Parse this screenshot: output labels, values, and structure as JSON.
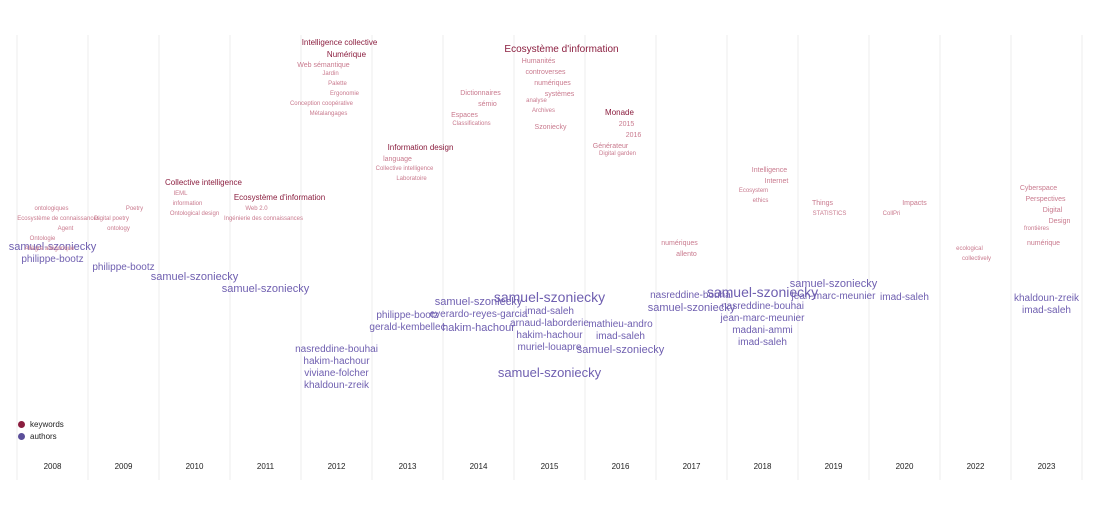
{
  "chart_data": {
    "type": "word-stream",
    "years": [
      "2008",
      "2009",
      "2010",
      "2011",
      "2012",
      "2013",
      "2014",
      "2015",
      "2016",
      "2017",
      "2018",
      "2019",
      "2020",
      "2022",
      "2023"
    ],
    "legend": [
      {
        "label": "keywords",
        "color": "#8b1e3f"
      },
      {
        "label": "authors",
        "color": "#5b4f9a"
      }
    ],
    "grid": true,
    "words": [
      {
        "t": "samuel-szoniecky",
        "k": "a",
        "year": "2008",
        "size": 11
      },
      {
        "t": "philippe-bootz",
        "k": "a",
        "year": "2008",
        "size": 10
      },
      {
        "t": "ontologiques",
        "k": "k",
        "year": "2008",
        "size": 6
      },
      {
        "t": "Ecosystème de connaissances",
        "k": "k",
        "year": "2008",
        "size": 6
      },
      {
        "t": "Agent",
        "k": "k",
        "year": "2008",
        "size": 6
      },
      {
        "t": "Ontologie",
        "k": "k",
        "year": "2008",
        "size": 6
      },
      {
        "t": "Allègre allégorique",
        "k": "k",
        "year": "2008",
        "size": 6
      },
      {
        "t": "philippe-bootz",
        "k": "a",
        "year": "2009",
        "size": 10
      },
      {
        "t": "Poetry",
        "k": "k",
        "year": "2009",
        "size": 6
      },
      {
        "t": "Digital poetry",
        "k": "k",
        "year": "2009",
        "size": 6
      },
      {
        "t": "ontology",
        "k": "k",
        "year": "2009",
        "size": 6
      },
      {
        "t": "samuel-szoniecky",
        "k": "a",
        "year": "2010",
        "size": 11
      },
      {
        "t": "Collective intelligence",
        "k": "k",
        "year": "2010",
        "size": 8
      },
      {
        "t": "IEML",
        "k": "k",
        "year": "2010",
        "size": 6
      },
      {
        "t": "information",
        "k": "k",
        "year": "2010",
        "size": 6
      },
      {
        "t": "Ontological design",
        "k": "k",
        "year": "2010",
        "size": 6
      },
      {
        "t": "samuel-szoniecky",
        "k": "a",
        "year": "2011",
        "size": 11
      },
      {
        "t": "Ecosystème d'information",
        "k": "k",
        "year": "2011",
        "size": 8
      },
      {
        "t": "Web 2.0",
        "k": "k",
        "year": "2011",
        "size": 6
      },
      {
        "t": "Ingénierie des connaissances",
        "k": "k",
        "year": "2011",
        "size": 6
      },
      {
        "t": "nasreddine-bouhai",
        "k": "a",
        "year": "2012",
        "size": 10
      },
      {
        "t": "hakim-hachour",
        "k": "a",
        "year": "2012",
        "size": 10
      },
      {
        "t": "viviane-folcher",
        "k": "a",
        "year": "2012",
        "size": 10
      },
      {
        "t": "khaldoun-zreik",
        "k": "a",
        "year": "2012",
        "size": 10
      },
      {
        "t": "Intelligence collective",
        "k": "k",
        "year": "2012",
        "size": 8
      },
      {
        "t": "Numérique",
        "k": "k",
        "year": "2012",
        "size": 8
      },
      {
        "t": "Web sémantique",
        "k": "k",
        "year": "2012",
        "size": 7
      },
      {
        "t": "Jardin",
        "k": "k",
        "year": "2012",
        "size": 6
      },
      {
        "t": "Palette",
        "k": "k",
        "year": "2012",
        "size": 6
      },
      {
        "t": "Ergonomie",
        "k": "k",
        "year": "2012",
        "size": 6
      },
      {
        "t": "Conception coopérative",
        "k": "k",
        "year": "2012",
        "size": 6
      },
      {
        "t": "Métalangages",
        "k": "k",
        "year": "2012",
        "size": 6
      },
      {
        "t": "philippe-bootz",
        "k": "a",
        "year": "2013",
        "size": 10
      },
      {
        "t": "gerald-kembellec",
        "k": "a",
        "year": "2013",
        "size": 10
      },
      {
        "t": "Information design",
        "k": "k",
        "year": "2013",
        "size": 8
      },
      {
        "t": "language",
        "k": "k",
        "year": "2013",
        "size": 7
      },
      {
        "t": "Collective intelligence",
        "k": "k",
        "year": "2013",
        "size": 6
      },
      {
        "t": "Laboratoire",
        "k": "k",
        "year": "2013",
        "size": 6
      },
      {
        "t": "samuel-szoniecky",
        "k": "a",
        "year": "2014",
        "size": 11
      },
      {
        "t": "everardo-reyes-garcia",
        "k": "a",
        "year": "2014",
        "size": 10
      },
      {
        "t": "hakim-hachour",
        "k": "a",
        "year": "2014",
        "size": 11
      },
      {
        "t": "Dictionnaires",
        "k": "k",
        "year": "2014",
        "size": 7
      },
      {
        "t": "sémio",
        "k": "k",
        "year": "2014",
        "size": 7
      },
      {
        "t": "Espaces",
        "k": "k",
        "year": "2014",
        "size": 7
      },
      {
        "t": "Classifications",
        "k": "k",
        "year": "2014",
        "size": 6
      },
      {
        "t": "samuel-szoniecky",
        "k": "a",
        "year": "2015",
        "size": 14
      },
      {
        "t": "imad-saleh",
        "k": "a",
        "year": "2015",
        "size": 10
      },
      {
        "t": "arnaud-laborderie",
        "k": "a",
        "year": "2015",
        "size": 10
      },
      {
        "t": "hakim-hachour",
        "k": "a",
        "year": "2015",
        "size": 10
      },
      {
        "t": "muriel-louapre",
        "k": "a",
        "year": "2015",
        "size": 10
      },
      {
        "t": "samuel-szoniecky",
        "k": "a",
        "year": "2015",
        "size": 13
      },
      {
        "t": "Ecosystème d'information",
        "k": "k",
        "year": "2015",
        "size": 10
      },
      {
        "t": "Humanités",
        "k": "k",
        "year": "2015",
        "size": 7
      },
      {
        "t": "controverses",
        "k": "k",
        "year": "2015",
        "size": 7
      },
      {
        "t": "numériques",
        "k": "k",
        "year": "2015",
        "size": 7
      },
      {
        "t": "systèmes",
        "k": "k",
        "year": "2015",
        "size": 7
      },
      {
        "t": "analyse",
        "k": "k",
        "year": "2015",
        "size": 6
      },
      {
        "t": "Archives",
        "k": "k",
        "year": "2015",
        "size": 6
      },
      {
        "t": "Szoniecky",
        "k": "k",
        "year": "2015",
        "size": 7
      },
      {
        "t": "mathieu-andro",
        "k": "a",
        "year": "2016",
        "size": 10
      },
      {
        "t": "imad-saleh",
        "k": "a",
        "year": "2016",
        "size": 10
      },
      {
        "t": "samuel-szoniecky",
        "k": "a",
        "year": "2016",
        "size": 11
      },
      {
        "t": "Monade",
        "k": "k",
        "year": "2016",
        "size": 8
      },
      {
        "t": "2015",
        "k": "k",
        "year": "2016",
        "size": 7
      },
      {
        "t": "2016",
        "k": "k",
        "year": "2016",
        "size": 7
      },
      {
        "t": "Générateur",
        "k": "k",
        "year": "2016",
        "size": 7
      },
      {
        "t": "Digital garden",
        "k": "k",
        "year": "2016",
        "size": 6
      },
      {
        "t": "nasreddine-bouhai",
        "k": "a",
        "year": "2017",
        "size": 10
      },
      {
        "t": "samuel-szoniecky",
        "k": "a",
        "year": "2017",
        "size": 11
      },
      {
        "t": "numériques",
        "k": "k",
        "year": "2017",
        "size": 7
      },
      {
        "t": "allento",
        "k": "k",
        "year": "2017",
        "size": 7
      },
      {
        "t": "samuel-szoniecky",
        "k": "a",
        "year": "2018",
        "size": 14
      },
      {
        "t": "nasreddine-bouhai",
        "k": "a",
        "year": "2018",
        "size": 10
      },
      {
        "t": "jean-marc-meunier",
        "k": "a",
        "year": "2018",
        "size": 10
      },
      {
        "t": "madani-ammi",
        "k": "a",
        "year": "2018",
        "size": 10
      },
      {
        "t": "imad-saleh",
        "k": "a",
        "year": "2018",
        "size": 10
      },
      {
        "t": "Intelligence",
        "k": "k",
        "year": "2018",
        "size": 7
      },
      {
        "t": "Internet",
        "k": "k",
        "year": "2018",
        "size": 7
      },
      {
        "t": "Ecosystem",
        "k": "k",
        "year": "2018",
        "size": 6
      },
      {
        "t": "ethics",
        "k": "k",
        "year": "2018",
        "size": 6
      },
      {
        "t": "samuel-szoniecky",
        "k": "a",
        "year": "2019",
        "size": 11
      },
      {
        "t": "jean-marc-meunier",
        "k": "a",
        "year": "2019",
        "size": 10
      },
      {
        "t": "Things",
        "k": "k",
        "year": "2019",
        "size": 7
      },
      {
        "t": "STATISTICS",
        "k": "k",
        "year": "2019",
        "size": 6
      },
      {
        "t": "imad-saleh",
        "k": "a",
        "year": "2020",
        "size": 10
      },
      {
        "t": "Impacts",
        "k": "k",
        "year": "2020",
        "size": 7
      },
      {
        "t": "CollPri",
        "k": "k",
        "year": "2020",
        "size": 6
      },
      {
        "t": "ecological",
        "k": "k",
        "year": "2022",
        "size": 6
      },
      {
        "t": "collectively",
        "k": "k",
        "year": "2022",
        "size": 6
      },
      {
        "t": "khaldoun-zreik",
        "k": "a",
        "year": "2023",
        "size": 10
      },
      {
        "t": "imad-saleh",
        "k": "a",
        "year": "2023",
        "size": 10
      },
      {
        "t": "Cyberspace",
        "k": "k",
        "year": "2023",
        "size": 7
      },
      {
        "t": "Perspectives",
        "k": "k",
        "year": "2023",
        "size": 7
      },
      {
        "t": "Digital",
        "k": "k",
        "year": "2023",
        "size": 7
      },
      {
        "t": "Design",
        "k": "k",
        "year": "2023",
        "size": 7
      },
      {
        "t": "frontières",
        "k": "k",
        "year": "2023",
        "size": 6
      },
      {
        "t": "numérique",
        "k": "k",
        "year": "2023",
        "size": 7
      }
    ]
  }
}
